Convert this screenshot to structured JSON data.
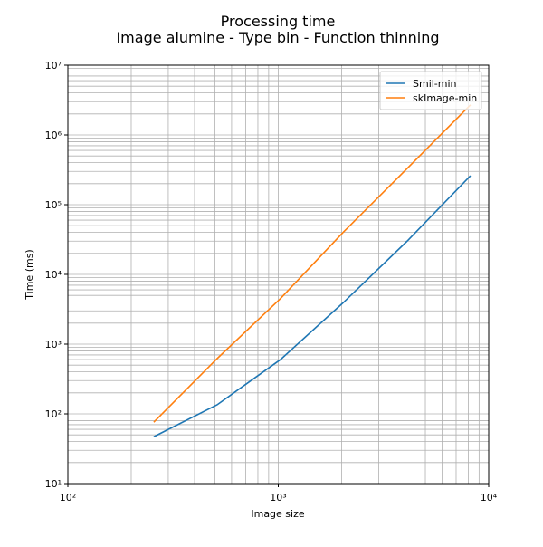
{
  "chart_data": {
    "type": "line",
    "title": "Processing time",
    "subtitle": "Image alumine - Type bin - Function thinning",
    "xlabel": "Image size",
    "ylabel": "Time (ms)",
    "x": [
      256,
      512,
      1024,
      2048,
      4096,
      8192
    ],
    "series": [
      {
        "name": "Smil-min",
        "color": "#1f77b4",
        "values": [
          47,
          135,
          600,
          4000,
          30000,
          260000
        ]
      },
      {
        "name": "skImage-min",
        "color": "#ff7f0e",
        "values": [
          76,
          620,
          4500,
          41000,
          330000,
          2700000
        ]
      }
    ],
    "xscale": "log",
    "yscale": "log",
    "xlim": [
      100,
      10000
    ],
    "xticks": [
      {
        "value": 100,
        "label": "10²"
      },
      {
        "value": 1000,
        "label": "10³"
      },
      {
        "value": 10000,
        "label": "10⁴"
      }
    ],
    "ylim": [
      10,
      10000000
    ],
    "yticks": [
      {
        "value": 10,
        "label": "10¹"
      },
      {
        "value": 100,
        "label": "10²"
      },
      {
        "value": 1000,
        "label": "10³"
      },
      {
        "value": 10000,
        "label": "10⁴"
      },
      {
        "value": 100000,
        "label": "10⁵"
      },
      {
        "value": 1000000,
        "label": "10⁶"
      },
      {
        "value": 10000000,
        "label": "10⁷"
      }
    ],
    "grid": true,
    "legend": "upper right"
  }
}
